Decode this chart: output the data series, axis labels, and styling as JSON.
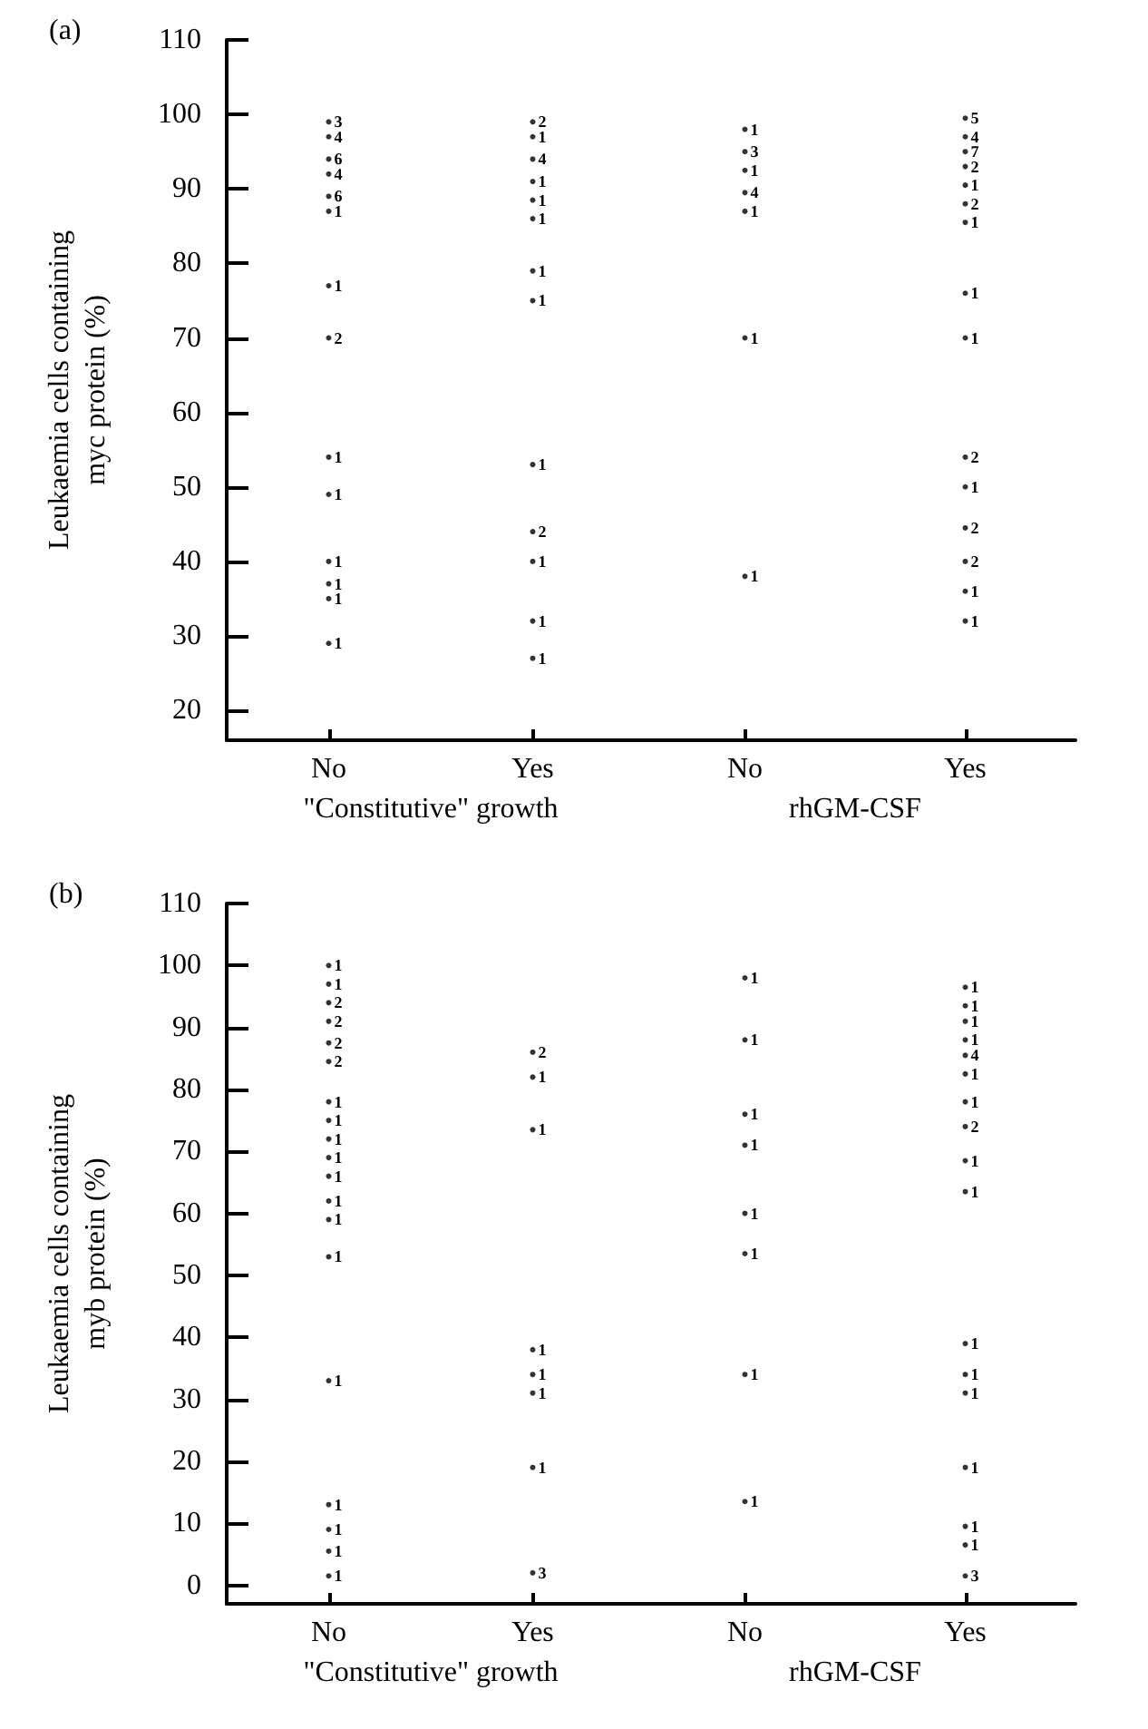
{
  "chart_data": [
    {
      "type": "scatter",
      "title": "(a)",
      "ylabel": "Leukaemia cells containing\nmyc protein (%)",
      "xlabel": "\"Constitutive\" growth",
      "categories": [
        "No",
        "Yes"
      ],
      "ylim": [
        16,
        110
      ],
      "yticks": [
        20,
        30,
        40,
        50,
        60,
        70,
        80,
        90,
        100,
        110
      ],
      "marker": "circle",
      "series": [
        {
          "color": "#000000",
          "x": [
            "No",
            "No",
            "No",
            "No",
            "No",
            "No",
            "No",
            "No",
            "No",
            "No",
            "No",
            "No",
            "No",
            "No"
          ],
          "values": [
            99,
            97,
            94,
            92,
            89,
            87,
            77,
            70,
            54,
            49,
            40,
            37,
            35,
            29
          ]
        },
        {
          "color": "#000000",
          "x": [
            "Yes",
            "Yes",
            "Yes",
            "Yes",
            "Yes",
            "Yes",
            "Yes",
            "Yes",
            "Yes",
            "Yes",
            "Yes",
            "Yes",
            "Yes"
          ],
          "values": [
            99,
            97,
            94,
            91,
            88.5,
            86,
            79,
            75,
            53,
            44,
            40,
            32,
            27
          ]
        }
      ],
      "annotations": [
        {
          "text": "3",
          "x": "No",
          "y": 99
        },
        {
          "text": "4",
          "x": "No",
          "y": 97
        },
        {
          "text": "6",
          "x": "No",
          "y": 94
        },
        {
          "text": "4",
          "x": "No",
          "y": 92
        },
        {
          "text": "6",
          "x": "No",
          "y": 89
        },
        {
          "text": "1",
          "x": "No",
          "y": 87
        },
        {
          "text": "1",
          "x": "No",
          "y": 77
        },
        {
          "text": "2",
          "x": "No",
          "y": 70
        },
        {
          "text": "1",
          "x": "No",
          "y": 54
        },
        {
          "text": "1",
          "x": "No",
          "y": 49
        },
        {
          "text": "1",
          "x": "No",
          "y": 40
        },
        {
          "text": "1",
          "x": "No",
          "y": 37
        },
        {
          "text": "1",
          "x": "No",
          "y": 35
        },
        {
          "text": "1",
          "x": "No",
          "y": 29
        },
        {
          "text": "2",
          "x": "Yes",
          "y": 99
        },
        {
          "text": "1",
          "x": "Yes",
          "y": 97
        },
        {
          "text": "4",
          "x": "Yes",
          "y": 94
        },
        {
          "text": "1",
          "x": "Yes",
          "y": 91
        },
        {
          "text": "1",
          "x": "Yes",
          "y": 88.5
        },
        {
          "text": "1",
          "x": "Yes",
          "y": 86
        },
        {
          "text": "1",
          "x": "Yes",
          "y": 79
        },
        {
          "text": "1",
          "x": "Yes",
          "y": 75
        },
        {
          "text": "1",
          "x": "Yes",
          "y": 53
        },
        {
          "text": "2",
          "x": "Yes",
          "y": 44
        },
        {
          "text": "1",
          "x": "Yes",
          "y": 40
        },
        {
          "text": "1",
          "x": "Yes",
          "y": 32
        },
        {
          "text": "1",
          "x": "Yes",
          "y": 27
        }
      ]
    },
    {
      "type": "scatter",
      "xlabel": "rhGM-CSF",
      "categories": [
        "No",
        "Yes"
      ],
      "ylim": [
        16,
        110
      ],
      "tick_labels": "x",
      "marker": "circle",
      "series": [
        {
          "color": "#000000",
          "x": [
            "No",
            "No",
            "No",
            "No",
            "No",
            "No",
            "No"
          ],
          "values": [
            98,
            95,
            92.5,
            89.5,
            87,
            70,
            38
          ]
        },
        {
          "color": "#000000",
          "x": [
            "Yes",
            "Yes",
            "Yes",
            "Yes",
            "Yes",
            "Yes",
            "Yes",
            "Yes",
            "Yes",
            "Yes",
            "Yes",
            "Yes",
            "Yes",
            "Yes",
            "Yes"
          ],
          "values": [
            99.5,
            97,
            95,
            93,
            90.5,
            88,
            85.5,
            76,
            70,
            54,
            50,
            44.5,
            40,
            36,
            32
          ]
        }
      ],
      "annotations": [
        {
          "text": "1",
          "x": "No",
          "y": 98
        },
        {
          "text": "3",
          "x": "No",
          "y": 95
        },
        {
          "text": "1",
          "x": "No",
          "y": 92.5
        },
        {
          "text": "4",
          "x": "No",
          "y": 89.5
        },
        {
          "text": "1",
          "x": "No",
          "y": 87
        },
        {
          "text": "1",
          "x": "No",
          "y": 70
        },
        {
          "text": "1",
          "x": "No",
          "y": 38
        },
        {
          "text": "5",
          "x": "Yes",
          "y": 99.5
        },
        {
          "text": "4",
          "x": "Yes",
          "y": 97
        },
        {
          "text": "7",
          "x": "Yes",
          "y": 95
        },
        {
          "text": "2",
          "x": "Yes",
          "y": 93
        },
        {
          "text": "1",
          "x": "Yes",
          "y": 90.5
        },
        {
          "text": "2",
          "x": "Yes",
          "y": 88
        },
        {
          "text": "1",
          "x": "Yes",
          "y": 85.5
        },
        {
          "text": "1",
          "x": "Yes",
          "y": 76
        },
        {
          "text": "1",
          "x": "Yes",
          "y": 70
        },
        {
          "text": "2",
          "x": "Yes",
          "y": 54
        },
        {
          "text": "1",
          "x": "Yes",
          "y": 50
        },
        {
          "text": "2",
          "x": "Yes",
          "y": 44.5
        },
        {
          "text": "2",
          "x": "Yes",
          "y": 40
        },
        {
          "text": "1",
          "x": "Yes",
          "y": 36
        },
        {
          "text": "1",
          "x": "Yes",
          "y": 32
        }
      ]
    },
    {
      "type": "scatter",
      "title": "(b)",
      "ylabel": "Leukaemia cells containing\nmyb protein (%)",
      "xlabel": "\"Constitutive\" growth",
      "categories": [
        "No",
        "Yes"
      ],
      "ylim": [
        -3,
        110
      ],
      "yticks": [
        0,
        10,
        20,
        30,
        40,
        50,
        60,
        70,
        80,
        90,
        100,
        110
      ],
      "marker": "circle",
      "series": [
        {
          "color": "#000000",
          "x": [
            "No",
            "No",
            "No",
            "No",
            "No",
            "No",
            "No",
            "No",
            "No",
            "No",
            "No",
            "No",
            "No",
            "No",
            "No",
            "No",
            "No",
            "No",
            "No"
          ],
          "values": [
            100,
            97,
            94,
            91,
            87.5,
            84.5,
            78,
            75,
            72,
            69,
            66,
            62,
            59,
            53,
            33,
            13,
            9,
            5.5,
            1.5
          ]
        },
        {
          "color": "#000000",
          "x": [
            "Yes",
            "Yes",
            "Yes",
            "Yes",
            "Yes",
            "Yes",
            "Yes",
            "Yes"
          ],
          "values": [
            86,
            82,
            73.5,
            38,
            34,
            31,
            19,
            2
          ]
        }
      ],
      "annotations": [
        {
          "text": "1",
          "x": "No",
          "y": 100
        },
        {
          "text": "1",
          "x": "No",
          "y": 97
        },
        {
          "text": "2",
          "x": "No",
          "y": 94
        },
        {
          "text": "2",
          "x": "No",
          "y": 91
        },
        {
          "text": "2",
          "x": "No",
          "y": 87.5
        },
        {
          "text": "2",
          "x": "No",
          "y": 84.5
        },
        {
          "text": "1",
          "x": "No",
          "y": 78
        },
        {
          "text": "1",
          "x": "No",
          "y": 75
        },
        {
          "text": "1",
          "x": "No",
          "y": 72
        },
        {
          "text": "1",
          "x": "No",
          "y": 69
        },
        {
          "text": "1",
          "x": "No",
          "y": 66
        },
        {
          "text": "1",
          "x": "No",
          "y": 62
        },
        {
          "text": "1",
          "x": "No",
          "y": 59
        },
        {
          "text": "1",
          "x": "No",
          "y": 53
        },
        {
          "text": "1",
          "x": "No",
          "y": 33
        },
        {
          "text": "1",
          "x": "No",
          "y": 13
        },
        {
          "text": "1",
          "x": "No",
          "y": 9
        },
        {
          "text": "1",
          "x": "No",
          "y": 5.5
        },
        {
          "text": "1",
          "x": "No",
          "y": 1.5
        },
        {
          "text": "2",
          "x": "Yes",
          "y": 86
        },
        {
          "text": "1",
          "x": "Yes",
          "y": 82
        },
        {
          "text": "1",
          "x": "Yes",
          "y": 73.5
        },
        {
          "text": "1",
          "x": "Yes",
          "y": 38
        },
        {
          "text": "1",
          "x": "Yes",
          "y": 34
        },
        {
          "text": "1",
          "x": "Yes",
          "y": 31
        },
        {
          "text": "1",
          "x": "Yes",
          "y": 19
        },
        {
          "text": "3",
          "x": "Yes",
          "y": 2
        }
      ]
    },
    {
      "type": "scatter",
      "xlabel": "rhGM-CSF",
      "categories": [
        "No",
        "Yes"
      ],
      "ylim": [
        -3,
        110
      ],
      "tick_labels": "x",
      "marker": "circle",
      "series": [
        {
          "color": "#000000",
          "x": [
            "No",
            "No",
            "No",
            "No",
            "No",
            "No",
            "No",
            "No"
          ],
          "values": [
            98,
            88,
            76,
            71,
            60,
            53.5,
            34,
            13.5
          ]
        },
        {
          "color": "#000000",
          "x": [
            "Yes",
            "Yes",
            "Yes",
            "Yes",
            "Yes",
            "Yes",
            "Yes",
            "Yes",
            "Yes",
            "Yes",
            "Yes",
            "Yes",
            "Yes",
            "Yes",
            "Yes",
            "Yes",
            "Yes"
          ],
          "values": [
            96.5,
            93.5,
            91,
            88,
            85.5,
            82.5,
            78,
            74,
            68.5,
            63.5,
            39,
            34,
            31,
            19,
            9.5,
            6.5,
            1.5
          ]
        }
      ],
      "annotations": [
        {
          "text": "1",
          "x": "No",
          "y": 98
        },
        {
          "text": "1",
          "x": "No",
          "y": 88
        },
        {
          "text": "1",
          "x": "No",
          "y": 76
        },
        {
          "text": "1",
          "x": "No",
          "y": 71
        },
        {
          "text": "1",
          "x": "No",
          "y": 60
        },
        {
          "text": "1",
          "x": "No",
          "y": 53.5
        },
        {
          "text": "1",
          "x": "No",
          "y": 34
        },
        {
          "text": "1",
          "x": "No",
          "y": 13.5
        },
        {
          "text": "1",
          "x": "Yes",
          "y": 96.5
        },
        {
          "text": "1",
          "x": "Yes",
          "y": 93.5
        },
        {
          "text": "1",
          "x": "Yes",
          "y": 91
        },
        {
          "text": "1",
          "x": "Yes",
          "y": 88
        },
        {
          "text": "4",
          "x": "Yes",
          "y": 85.5
        },
        {
          "text": "1",
          "x": "Yes",
          "y": 82.5
        },
        {
          "text": "1",
          "x": "Yes",
          "y": 78
        },
        {
          "text": "2",
          "x": "Yes",
          "y": 74
        },
        {
          "text": "1",
          "x": "Yes",
          "y": 68.5
        },
        {
          "text": "1",
          "x": "Yes",
          "y": 63.5
        },
        {
          "text": "1",
          "x": "Yes",
          "y": 39
        },
        {
          "text": "1",
          "x": "Yes",
          "y": 34
        },
        {
          "text": "1",
          "x": "Yes",
          "y": 31
        },
        {
          "text": "1",
          "x": "Yes",
          "y": 19
        },
        {
          "text": "1",
          "x": "Yes",
          "y": 9.5
        },
        {
          "text": "1",
          "x": "Yes",
          "y": 6.5
        },
        {
          "text": "3",
          "x": "Yes",
          "y": 1.5
        }
      ]
    }
  ]
}
